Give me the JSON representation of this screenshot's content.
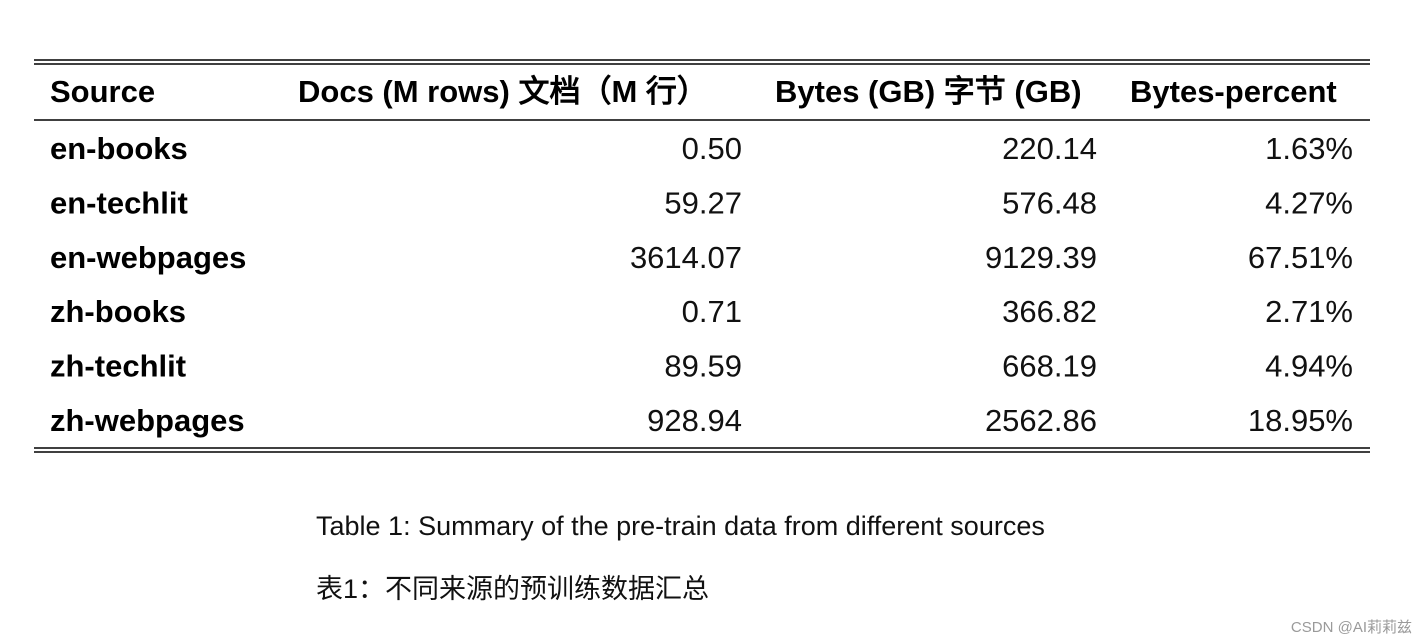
{
  "table": {
    "header": [
      "Source",
      "Docs (M rows) 文档（M 行）",
      "Bytes (GB) 字节 (GB)",
      "Bytes-percent"
    ],
    "rows": [
      [
        "en-books",
        "0.50",
        "220.14",
        "1.63%"
      ],
      [
        "en-techlit",
        "59.27",
        "576.48",
        "4.27%"
      ],
      [
        "en-webpages",
        "3614.07",
        "9129.39",
        "67.51%"
      ],
      [
        "zh-books",
        "0.71",
        "366.82",
        "2.71%"
      ],
      [
        "zh-techlit",
        "89.59",
        "668.19",
        "4.94%"
      ],
      [
        "zh-webpages",
        "928.94",
        "2562.86",
        "18.95%"
      ]
    ]
  },
  "caption": [
    "Table 1: Summary of the pre-train data from different sources",
    "表1：不同来源的预训练数据汇总"
  ],
  "watermark": "CSDN @AI莉莉兹"
}
